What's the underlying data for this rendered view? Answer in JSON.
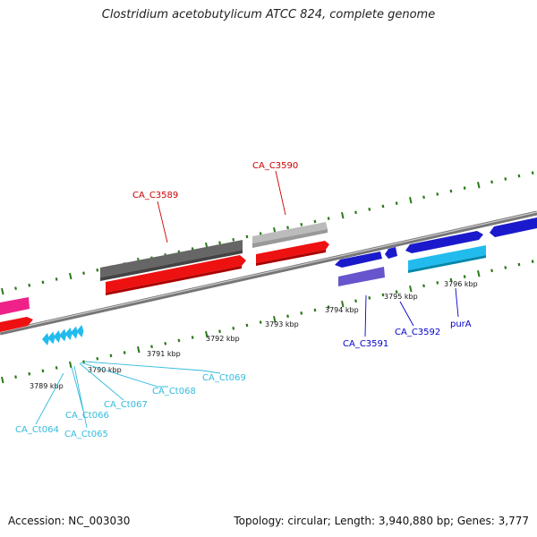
{
  "title": "Clostridium acetobutylicum ATCC 824, complete genome",
  "accession": "Accession: NC_003030",
  "summary": "Topology: circular; Length: 3,940,880 bp; Genes: 3,777",
  "kbp_ticks": [
    "3789 kbp",
    "3790 kbp",
    "3791 kbp",
    "3792 kbp",
    "3793 kbp",
    "3794 kbp",
    "3795 kbp",
    "3796 kbp"
  ],
  "genes": [
    {
      "label": "CA_C3589",
      "color": "#cc0000"
    },
    {
      "label": "CA_C3590",
      "color": "#cc0000"
    },
    {
      "label": "CA_C3591",
      "color": "#0000cc"
    },
    {
      "label": "CA_C3592",
      "color": "#0000cc"
    },
    {
      "label": "purA",
      "color": "#0000cc"
    },
    {
      "label": "CA_Ct064",
      "color": "#33bbdd"
    },
    {
      "label": "CA_Ct065",
      "color": "#33bbdd"
    },
    {
      "label": "CA_Ct066",
      "color": "#33bbdd"
    },
    {
      "label": "CA_Ct067",
      "color": "#33bbdd"
    },
    {
      "label": "CA_Ct068",
      "color": "#33bbdd"
    },
    {
      "label": "CA_Ct069",
      "color": "#33bbdd"
    }
  ],
  "colors": {
    "backbone": "#888888",
    "dot_track": "#2a7a1a",
    "feature_red": "#ee1111",
    "feature_dark": "#555555",
    "feature_light": "#bbbbbb",
    "feature_pink": "#ee2288",
    "feature_blue": "#1a1acc",
    "feature_purple": "#6655cc",
    "feature_cyan": "#22bbee"
  }
}
